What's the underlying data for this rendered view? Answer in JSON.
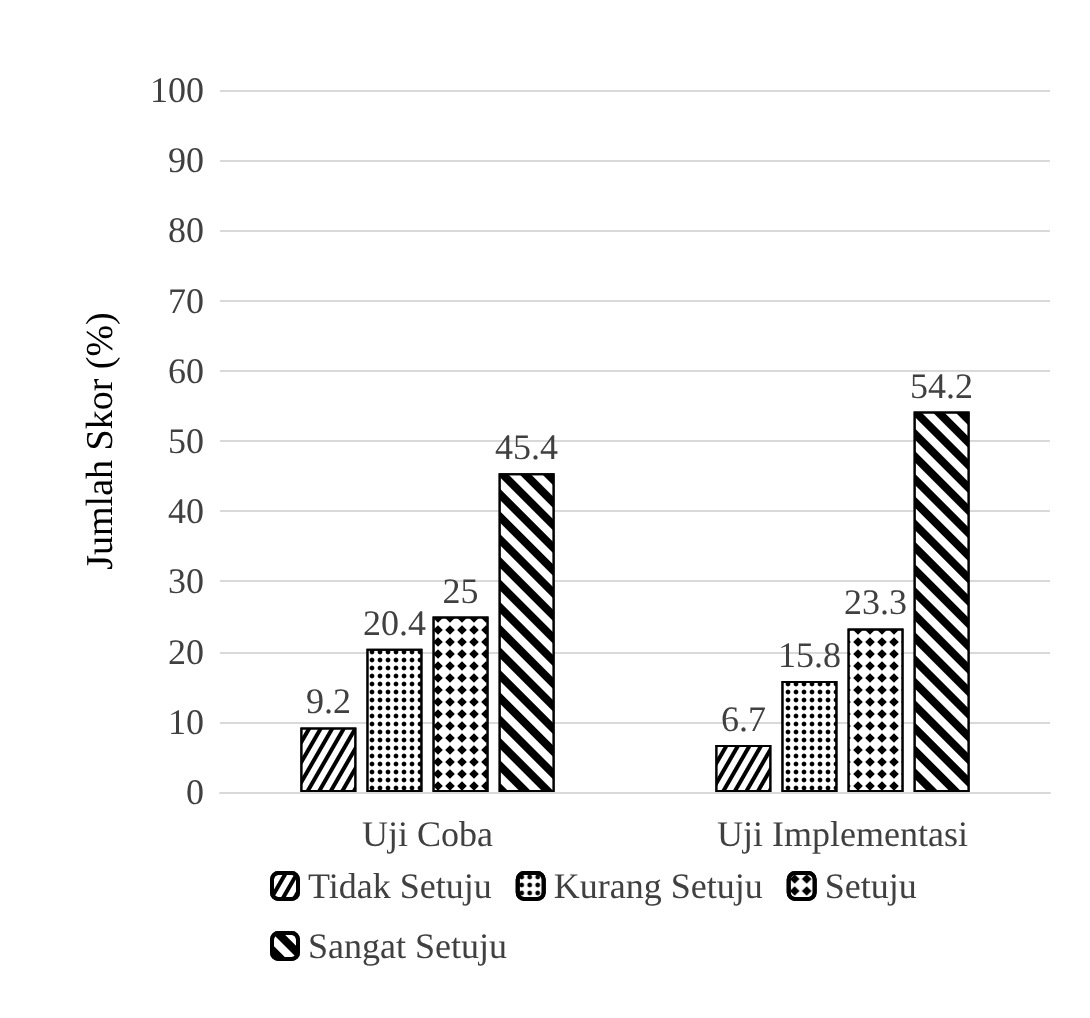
{
  "chart_data": {
    "type": "bar",
    "ylabel": "Jumlah Skor (%)",
    "categories": [
      "Uji Coba",
      "Uji Implementasi"
    ],
    "series": [
      {
        "name": "Tidak Setuju",
        "color": "#000000",
        "values": [
          9.2,
          6.7
        ]
      },
      {
        "name": "Kurang Setuju",
        "color": "#000000",
        "values": [
          20.4,
          15.8
        ]
      },
      {
        "name": "Setuju",
        "color": "#000000",
        "values": [
          25,
          23.3
        ]
      },
      {
        "name": "Sangat Setuju",
        "color": "#000000",
        "values": [
          45.4,
          54.2
        ]
      }
    ],
    "ylim": [
      0,
      100
    ],
    "yticks": [
      0,
      10,
      20,
      30,
      40,
      50,
      60,
      70,
      80,
      90,
      100
    ],
    "grid": "y",
    "legend": "bottom",
    "data_labels": true
  }
}
